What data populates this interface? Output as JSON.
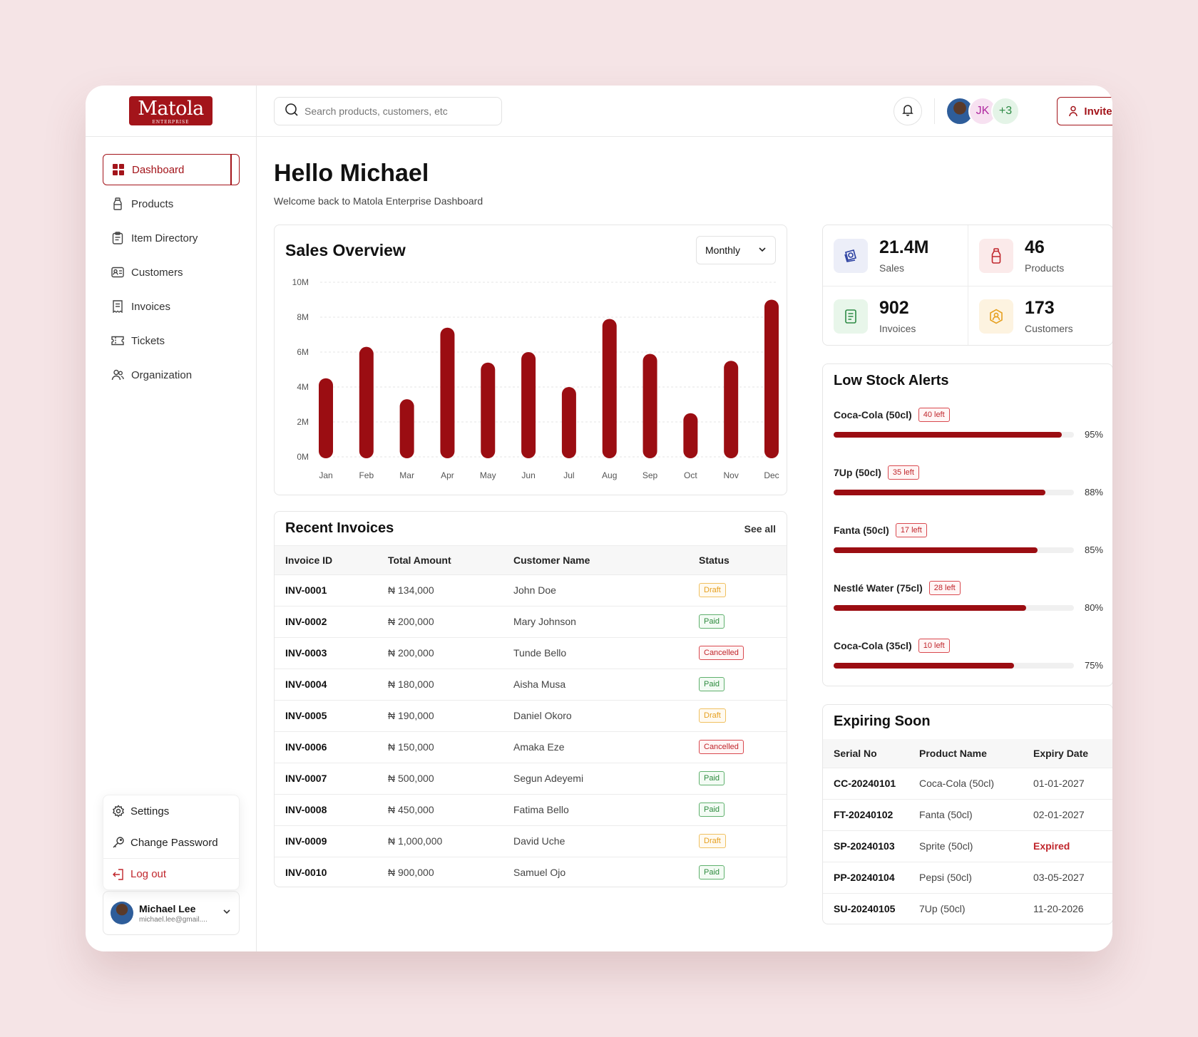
{
  "logo": {
    "text": "Matola",
    "sub": "ENTERPRISE"
  },
  "sidebar": {
    "items": [
      {
        "label": "Dashboard",
        "icon": "grid-icon"
      },
      {
        "label": "Products",
        "icon": "bottle-icon"
      },
      {
        "label": "Item Directory",
        "icon": "clipboard-icon"
      },
      {
        "label": "Customers",
        "icon": "id-card-icon"
      },
      {
        "label": "Invoices",
        "icon": "receipt-icon"
      },
      {
        "label": "Tickets",
        "icon": "ticket-icon"
      },
      {
        "label": "Organization",
        "icon": "users-icon"
      }
    ],
    "menu": {
      "settings": "Settings",
      "change_password": "Change Password",
      "logout": "Log out"
    },
    "user": {
      "name": "Michael Lee",
      "email": "michael.lee@gmail...."
    }
  },
  "topbar": {
    "search_placeholder": "Search products, customers, etc",
    "avatar_initials": "JK",
    "avatar_more": "+3",
    "invite_label": "Invite"
  },
  "header": {
    "title": "Hello Michael",
    "subtitle": "Welcome back to Matola Enterprise Dashboard"
  },
  "sales_overview": {
    "title": "Sales Overview",
    "period": "Monthly"
  },
  "chart_data": {
    "type": "bar",
    "title": "Sales Overview",
    "categories": [
      "Jan",
      "Feb",
      "Mar",
      "Apr",
      "May",
      "Jun",
      "Jul",
      "Aug",
      "Sep",
      "Oct",
      "Nov",
      "Dec"
    ],
    "values": [
      4.5,
      6.3,
      3.3,
      7.4,
      5.4,
      6.0,
      4.0,
      7.9,
      5.9,
      2.5,
      5.5,
      9.0
    ],
    "yticks": [
      "10M",
      "8M",
      "6M",
      "4M",
      "2M",
      "0M"
    ],
    "ylim": [
      0,
      10
    ],
    "unit": "M",
    "color": "#9b0d12"
  },
  "invoices": {
    "title": "Recent Invoices",
    "see_all": "See all",
    "columns": [
      "Invoice ID",
      "Total Amount",
      "Customer Name",
      "Status"
    ],
    "rows": [
      {
        "id": "INV-0001",
        "amount": "₦ 134,000",
        "customer": "John Doe",
        "status": "Draft"
      },
      {
        "id": "INV-0002",
        "amount": "₦ 200,000",
        "customer": "Mary Johnson",
        "status": "Paid"
      },
      {
        "id": "INV-0003",
        "amount": "₦ 200,000",
        "customer": "Tunde Bello",
        "status": "Cancelled"
      },
      {
        "id": "INV-0004",
        "amount": "₦ 180,000",
        "customer": "Aisha Musa",
        "status": "Paid"
      },
      {
        "id": "INV-0005",
        "amount": "₦ 190,000",
        "customer": "Daniel Okoro",
        "status": "Draft"
      },
      {
        "id": "INV-0006",
        "amount": "₦ 150,000",
        "customer": "Amaka Eze",
        "status": "Cancelled"
      },
      {
        "id": "INV-0007",
        "amount": "₦ 500,000",
        "customer": "Segun Adeyemi",
        "status": "Paid"
      },
      {
        "id": "INV-0008",
        "amount": "₦ 450,000",
        "customer": "Fatima Bello",
        "status": "Paid"
      },
      {
        "id": "INV-0009",
        "amount": "₦ 1,000,000",
        "customer": "David Uche",
        "status": "Draft"
      },
      {
        "id": "INV-0010",
        "amount": "₦ 900,000",
        "customer": "Samuel Ojo",
        "status": "Paid"
      }
    ]
  },
  "stats": [
    {
      "value": "21.4M",
      "label": "Sales",
      "icon": "wallet-icon",
      "bg": "#eceef8",
      "color": "#2a3fa0"
    },
    {
      "value": "46",
      "label": "Products",
      "icon": "bottle-icon",
      "bg": "#fbeaea",
      "color": "#c0262c"
    },
    {
      "value": "902",
      "label": "Invoices",
      "icon": "receipt-icon",
      "bg": "#e8f6ea",
      "color": "#2d8a44"
    },
    {
      "value": "173",
      "label": "Customers",
      "icon": "user-badge-icon",
      "bg": "#fdf3e0",
      "color": "#e6a020"
    }
  ],
  "low_stock": {
    "title": "Low Stock Alerts",
    "items": [
      {
        "name": "Coca-Cola (50cl)",
        "badge": "40 left",
        "percent": 95,
        "pct_label": "95%"
      },
      {
        "name": "7Up (50cl)",
        "badge": "35 left",
        "percent": 88,
        "pct_label": "88%"
      },
      {
        "name": "Fanta (50cl)",
        "badge": "17 left",
        "percent": 85,
        "pct_label": "85%"
      },
      {
        "name": "Nestlé Water (75cl)",
        "badge": "28 left",
        "percent": 80,
        "pct_label": "80%"
      },
      {
        "name": "Coca-Cola (35cl)",
        "badge": "10 left",
        "percent": 75,
        "pct_label": "75%"
      }
    ]
  },
  "expiring": {
    "title": "Expiring Soon",
    "columns": [
      "Serial No",
      "Product Name",
      "Expiry Date"
    ],
    "rows": [
      {
        "serial": "CC-20240101",
        "product": "Coca-Cola (50cl)",
        "date": "01-01-2027"
      },
      {
        "serial": "FT-20240102",
        "product": "Fanta (50cl)",
        "date": "02-01-2027"
      },
      {
        "serial": "SP-20240103",
        "product": "Sprite (50cl)",
        "date": "Expired"
      },
      {
        "serial": "PP-20240104",
        "product": "Pepsi (50cl)",
        "date": "03-05-2027"
      },
      {
        "serial": "SU-20240105",
        "product": "7Up (50cl)",
        "date": "11-20-2026"
      }
    ]
  }
}
